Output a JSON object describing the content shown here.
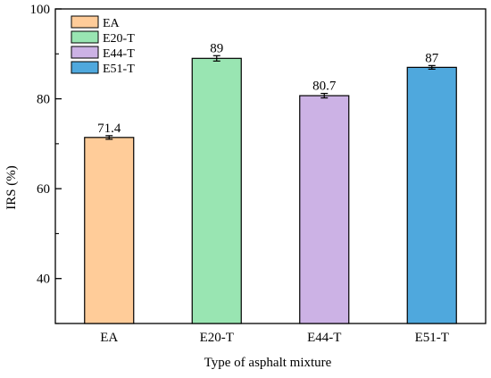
{
  "chart_data": {
    "type": "bar",
    "categories": [
      "EA",
      "E20-T",
      "E44-T",
      "E51-T"
    ],
    "series": [
      {
        "values": [
          71.4,
          89,
          80.7,
          87
        ],
        "errors": [
          0.4,
          0.6,
          0.5,
          0.4
        ],
        "colors": [
          "#FFCC99",
          "#99E5B2",
          "#CCB2E5",
          "#4FA8DD"
        ]
      }
    ],
    "data_labels": [
      "71.4",
      "89",
      "80.7",
      "87"
    ],
    "title": "",
    "xlabel": "Type of asphalt mixture",
    "ylabel": "IRS (%)",
    "ylim": [
      30,
      100
    ],
    "yticks": [
      40,
      60,
      80,
      100
    ],
    "grid": false,
    "legend": {
      "placement": "top-left",
      "entries": [
        "EA",
        "E20-T",
        "E44-T",
        "E51-T"
      ]
    }
  }
}
